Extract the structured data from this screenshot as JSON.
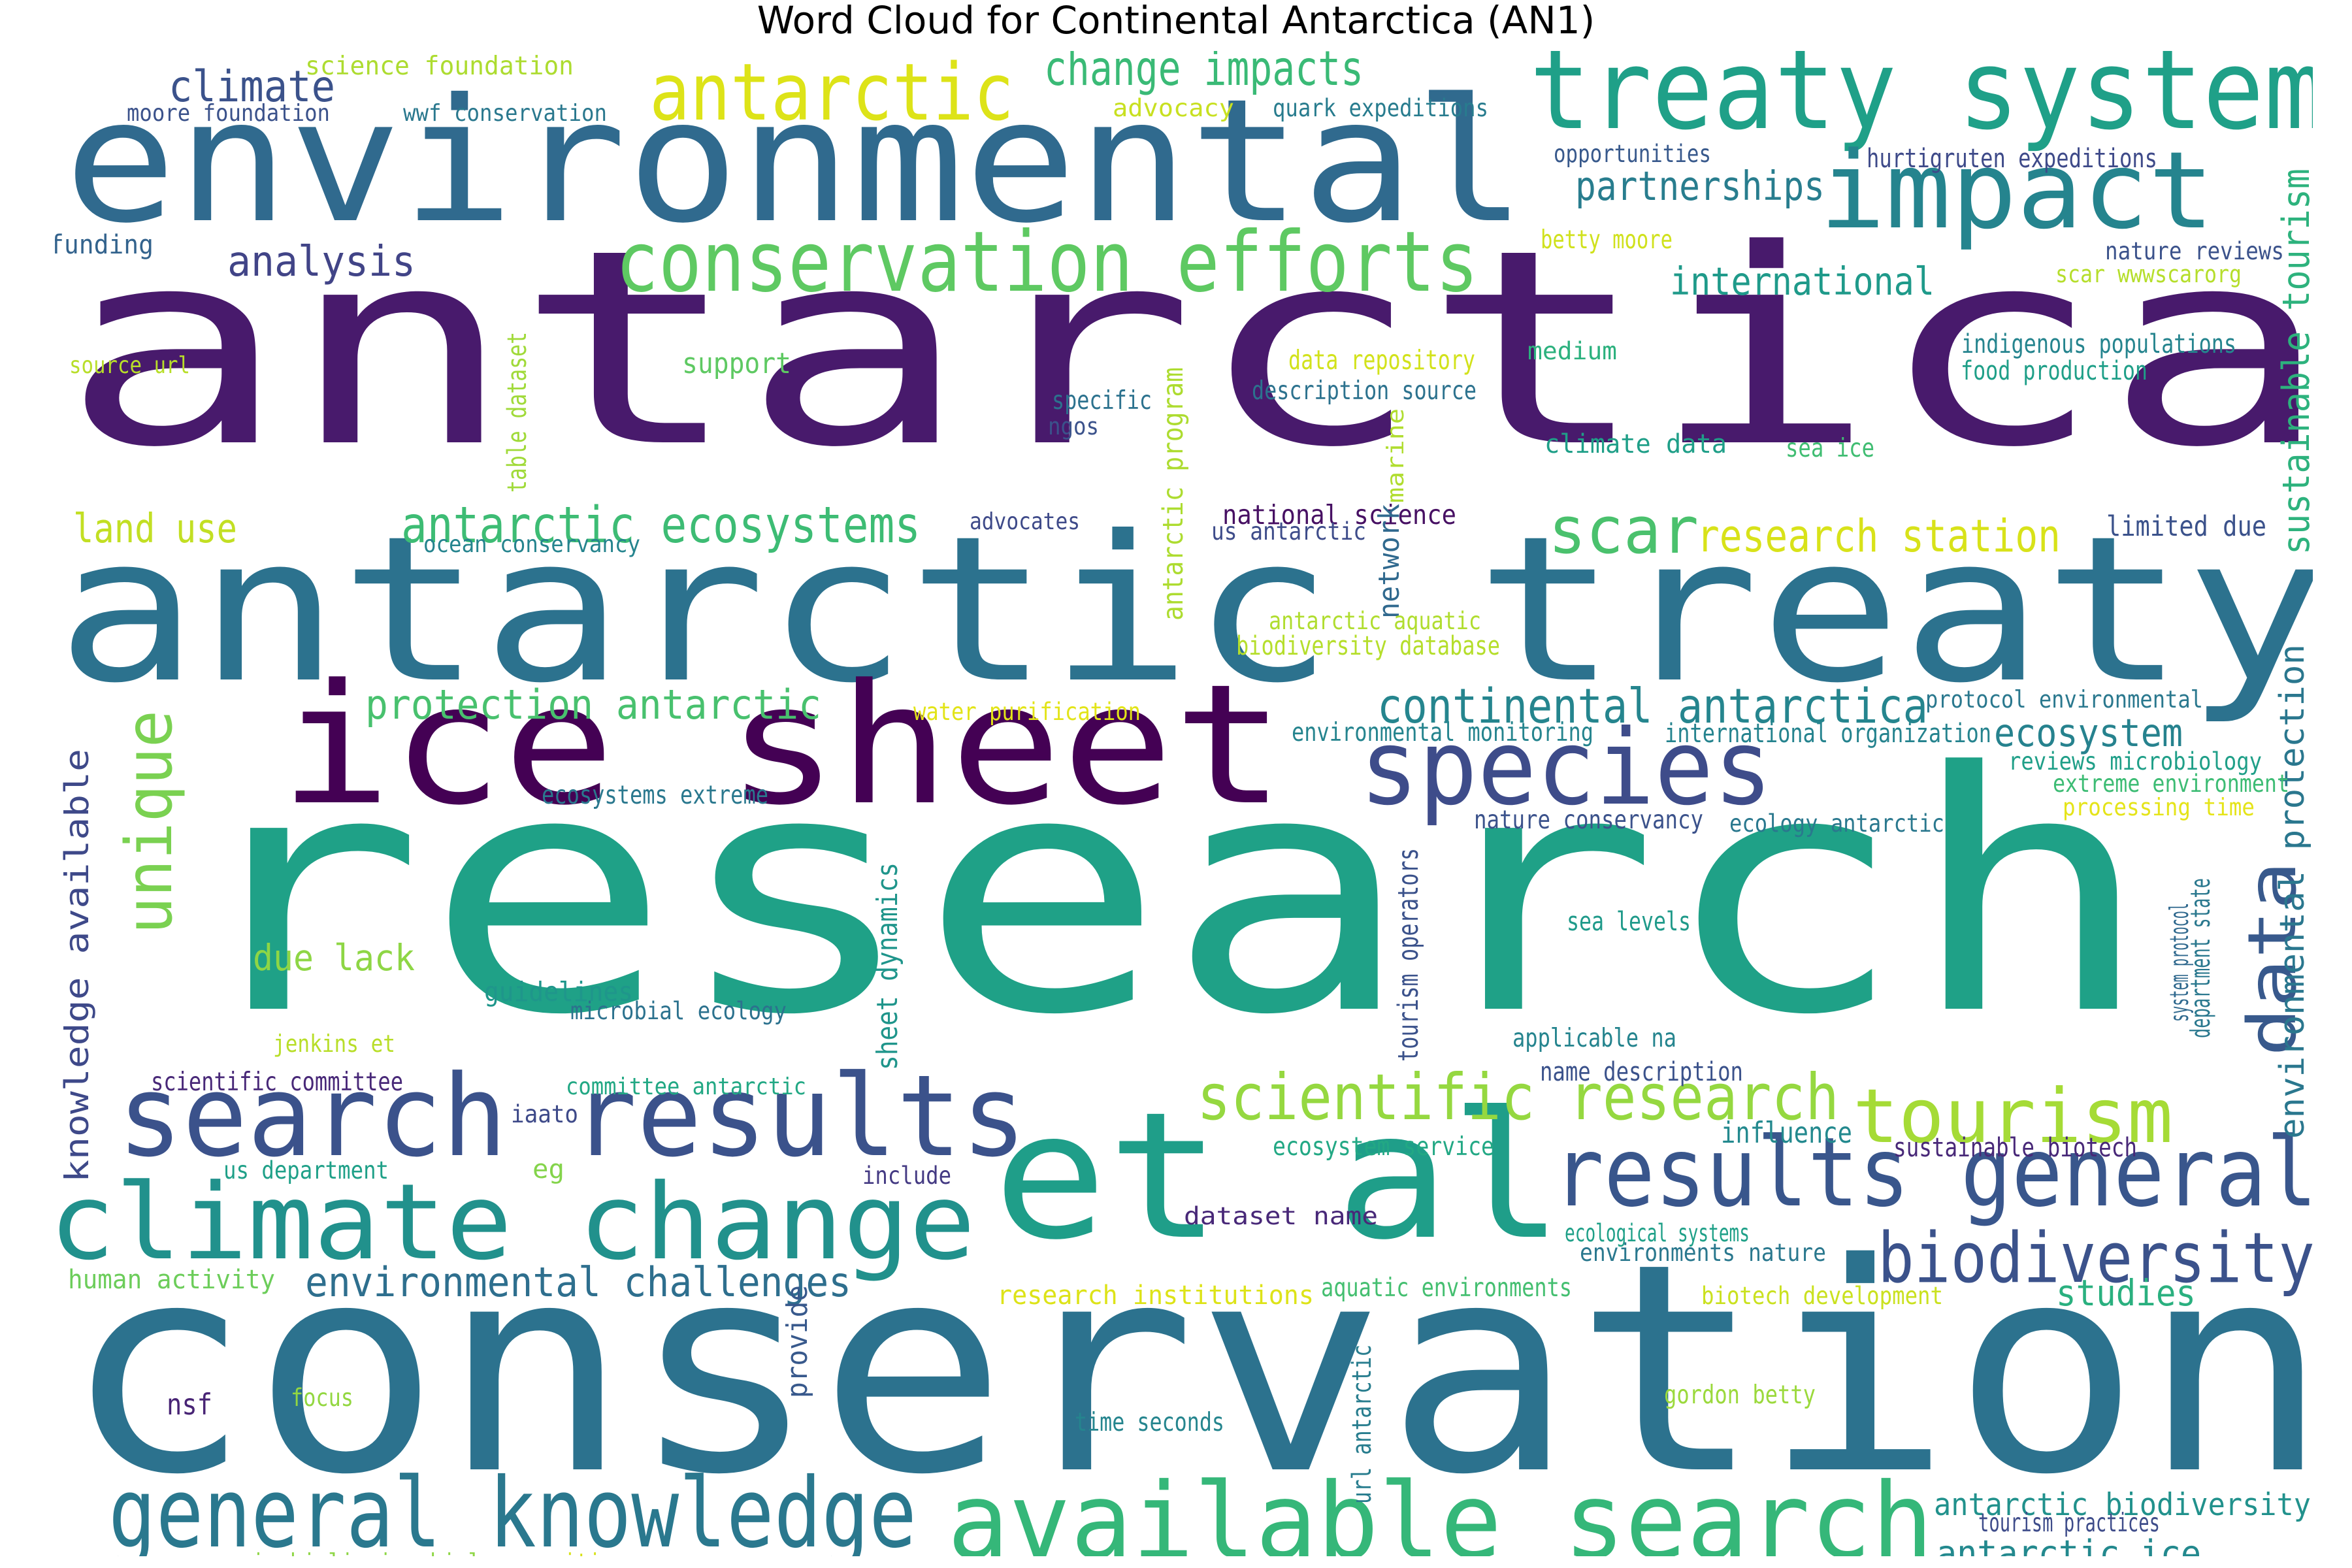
{
  "title": "Word Cloud for Continental Antarctica (AN1)",
  "colormap": "viridis",
  "background": "#ffffff",
  "words": [
    {
      "text": "antarctica",
      "color": "#481a6c"
    },
    {
      "text": "research",
      "color": "#1fa187"
    },
    {
      "text": "conservation",
      "color": "#2c728e"
    },
    {
      "text": "antarctic treaty",
      "color": "#2c728e"
    },
    {
      "text": "environmental",
      "color": "#306a8e"
    },
    {
      "text": "ice sheet",
      "color": "#440154"
    },
    {
      "text": "et al",
      "color": "#1f9e89"
    },
    {
      "text": "treaty system",
      "color": "#1fa088"
    },
    {
      "text": "impact",
      "color": "#25848e"
    },
    {
      "text": "species",
      "color": "#3e4c8a"
    },
    {
      "text": "search results",
      "color": "#3b528b"
    },
    {
      "text": "climate change",
      "color": "#21918c"
    },
    {
      "text": "available search",
      "color": "#35b779"
    },
    {
      "text": "general knowledge",
      "color": "#2a788e"
    },
    {
      "text": "results general",
      "color": "#39568c"
    },
    {
      "text": "conservation efforts",
      "color": "#5ec962"
    },
    {
      "text": "antarctic",
      "color": "#dde318"
    },
    {
      "text": "tourism",
      "color": "#a5db36"
    },
    {
      "text": "biodiversity",
      "color": "#3b528b"
    },
    {
      "text": "scientific research",
      "color": "#95d840"
    },
    {
      "text": "data",
      "color": "#38598c"
    },
    {
      "text": "unique",
      "color": "#7ad151"
    },
    {
      "text": "antarctic ecosystems",
      "color": "#3dbc74"
    },
    {
      "text": "continental antarctica",
      "color": "#25858e"
    },
    {
      "text": "change impacts",
      "color": "#3aba76"
    },
    {
      "text": "scar",
      "color": "#4ac16d"
    },
    {
      "text": "research station",
      "color": "#d8e219"
    },
    {
      "text": "protection antarctic",
      "color": "#48c16e"
    },
    {
      "text": "environmental challenges",
      "color": "#2e6f8e"
    },
    {
      "text": "knowledge available",
      "color": "#3e4989"
    },
    {
      "text": "environmental protection",
      "color": "#2a778e"
    },
    {
      "text": "sustainable tourism",
      "color": "#2db27d"
    },
    {
      "text": "climate",
      "color": "#3b528b"
    },
    {
      "text": "analysis",
      "color": "#414487"
    },
    {
      "text": "partnerships",
      "color": "#287d8e"
    },
    {
      "text": "international",
      "color": "#1f9a8a"
    },
    {
      "text": "ecosystem",
      "color": "#26828e"
    },
    {
      "text": "studies",
      "color": "#2ab07f"
    },
    {
      "text": "antarctic biodiversity",
      "color": "#21918c"
    },
    {
      "text": "antarctic ice",
      "color": "#23898e"
    },
    {
      "text": "land use",
      "color": "#c2df23"
    },
    {
      "text": "due lack",
      "color": "#8ed645"
    },
    {
      "text": "guidelines",
      "color": "#1f968b"
    },
    {
      "text": "national science",
      "color": "#471063"
    },
    {
      "text": "science foundation",
      "color": "#addc30"
    },
    {
      "text": "moore foundation",
      "color": "#3b528b"
    },
    {
      "text": "wwf conservation",
      "color": "#2a788e"
    },
    {
      "text": "funding",
      "color": "#33638d"
    },
    {
      "text": "advocacy",
      "color": "#c8e020"
    },
    {
      "text": "quark expeditions",
      "color": "#287c8e"
    },
    {
      "text": "opportunities",
      "color": "#38598c"
    },
    {
      "text": "hurtigruten expeditions",
      "color": "#3e4a89"
    },
    {
      "text": "betty moore",
      "color": "#d0e11c"
    },
    {
      "text": "nature reviews",
      "color": "#3b528b"
    },
    {
      "text": "scar wwwscarorg",
      "color": "#b5de2b"
    },
    {
      "text": "source url",
      "color": "#b8de29"
    },
    {
      "text": "support",
      "color": "#5ec962"
    },
    {
      "text": "data repository",
      "color": "#d2e21b"
    },
    {
      "text": "medium",
      "color": "#2cb17e"
    },
    {
      "text": "indigenous populations",
      "color": "#25848e"
    },
    {
      "text": "food production",
      "color": "#1f9f88"
    },
    {
      "text": "specific",
      "color": "#2c728e"
    },
    {
      "text": "ngos",
      "color": "#3b528b"
    },
    {
      "text": "description source",
      "color": "#2c728e"
    },
    {
      "text": "table dataset",
      "color": "#a0da39"
    },
    {
      "text": "antarctic program",
      "color": "#addc30"
    },
    {
      "text": "marine",
      "color": "#b0dd2f"
    },
    {
      "text": "climate data",
      "color": "#1f9f88"
    },
    {
      "text": "sea ice",
      "color": "#40bd72"
    },
    {
      "text": "advocates",
      "color": "#3e4a89"
    },
    {
      "text": "us antarctic",
      "color": "#3e4c8a"
    },
    {
      "text": "limited due",
      "color": "#3b528b"
    },
    {
      "text": "ocean conservancy",
      "color": "#25848e"
    },
    {
      "text": "network",
      "color": "#30698e"
    },
    {
      "text": "antarctic aquatic",
      "color": "#b0dd2f"
    },
    {
      "text": "biodiversity database",
      "color": "#b5de2b"
    },
    {
      "text": "water purification",
      "color": "#e2e418"
    },
    {
      "text": "protocol environmental",
      "color": "#2a788e"
    },
    {
      "text": "environmental monitoring",
      "color": "#25848e"
    },
    {
      "text": "international organization",
      "color": "#25838e"
    },
    {
      "text": "reviews microbiology",
      "color": "#1f9f88"
    },
    {
      "text": "extreme environment",
      "color": "#3dbc74"
    },
    {
      "text": "processing time",
      "color": "#e5e419"
    },
    {
      "text": "ecosystems extreme",
      "color": "#2a788e"
    },
    {
      "text": "nature conservancy",
      "color": "#3b528b"
    },
    {
      "text": "ecology antarctic",
      "color": "#2a788e"
    },
    {
      "text": "tourism operators",
      "color": "#3b528b"
    },
    {
      "text": "sea levels",
      "color": "#1f9a8a"
    },
    {
      "text": "sheet dynamics",
      "color": "#1f958b"
    },
    {
      "text": "microbial ecology",
      "color": "#2c728e"
    },
    {
      "text": "jenkins et",
      "color": "#b8de29"
    },
    {
      "text": "applicable na",
      "color": "#25848e"
    },
    {
      "text": "name description",
      "color": "#3b528b"
    },
    {
      "text": "system protocol",
      "color": "#30698e"
    },
    {
      "text": "department state",
      "color": "#2a788e"
    },
    {
      "text": "scientific committee",
      "color": "#482878"
    },
    {
      "text": "committee antarctic",
      "color": "#22a884"
    },
    {
      "text": "iaato",
      "color": "#3e4a89"
    },
    {
      "text": "influence",
      "color": "#23898e"
    },
    {
      "text": "us department",
      "color": "#1fa088"
    },
    {
      "text": "eg",
      "color": "#84d44b"
    },
    {
      "text": "include",
      "color": "#443a83"
    },
    {
      "text": "ecosystem service",
      "color": "#22a884"
    },
    {
      "text": "sustainable biotech",
      "color": "#482878"
    },
    {
      "text": "dataset name",
      "color": "#482878"
    },
    {
      "text": "ecological systems",
      "color": "#1fa088"
    },
    {
      "text": "environments nature",
      "color": "#2a788e"
    },
    {
      "text": "human activity",
      "color": "#6ccd5a"
    },
    {
      "text": "research institutions",
      "color": "#dde318"
    },
    {
      "text": "aquatic environments",
      "color": "#44bf70"
    },
    {
      "text": "biotech development",
      "color": "#cae11f"
    },
    {
      "text": "provide",
      "color": "#38598c"
    },
    {
      "text": "nsf",
      "color": "#482475"
    },
    {
      "text": "focus",
      "color": "#93d741"
    },
    {
      "text": "time seconds",
      "color": "#25858e"
    },
    {
      "text": "url antarctic",
      "color": "#287d8e"
    },
    {
      "text": "gordon betty",
      "color": "#9bd93c"
    },
    {
      "text": "tourism practices",
      "color": "#3e4c8a"
    },
    {
      "text": "cavicchioli microbial",
      "color": "#8ed645"
    },
    {
      "text": "communities",
      "color": "#d8e219"
    }
  ]
}
